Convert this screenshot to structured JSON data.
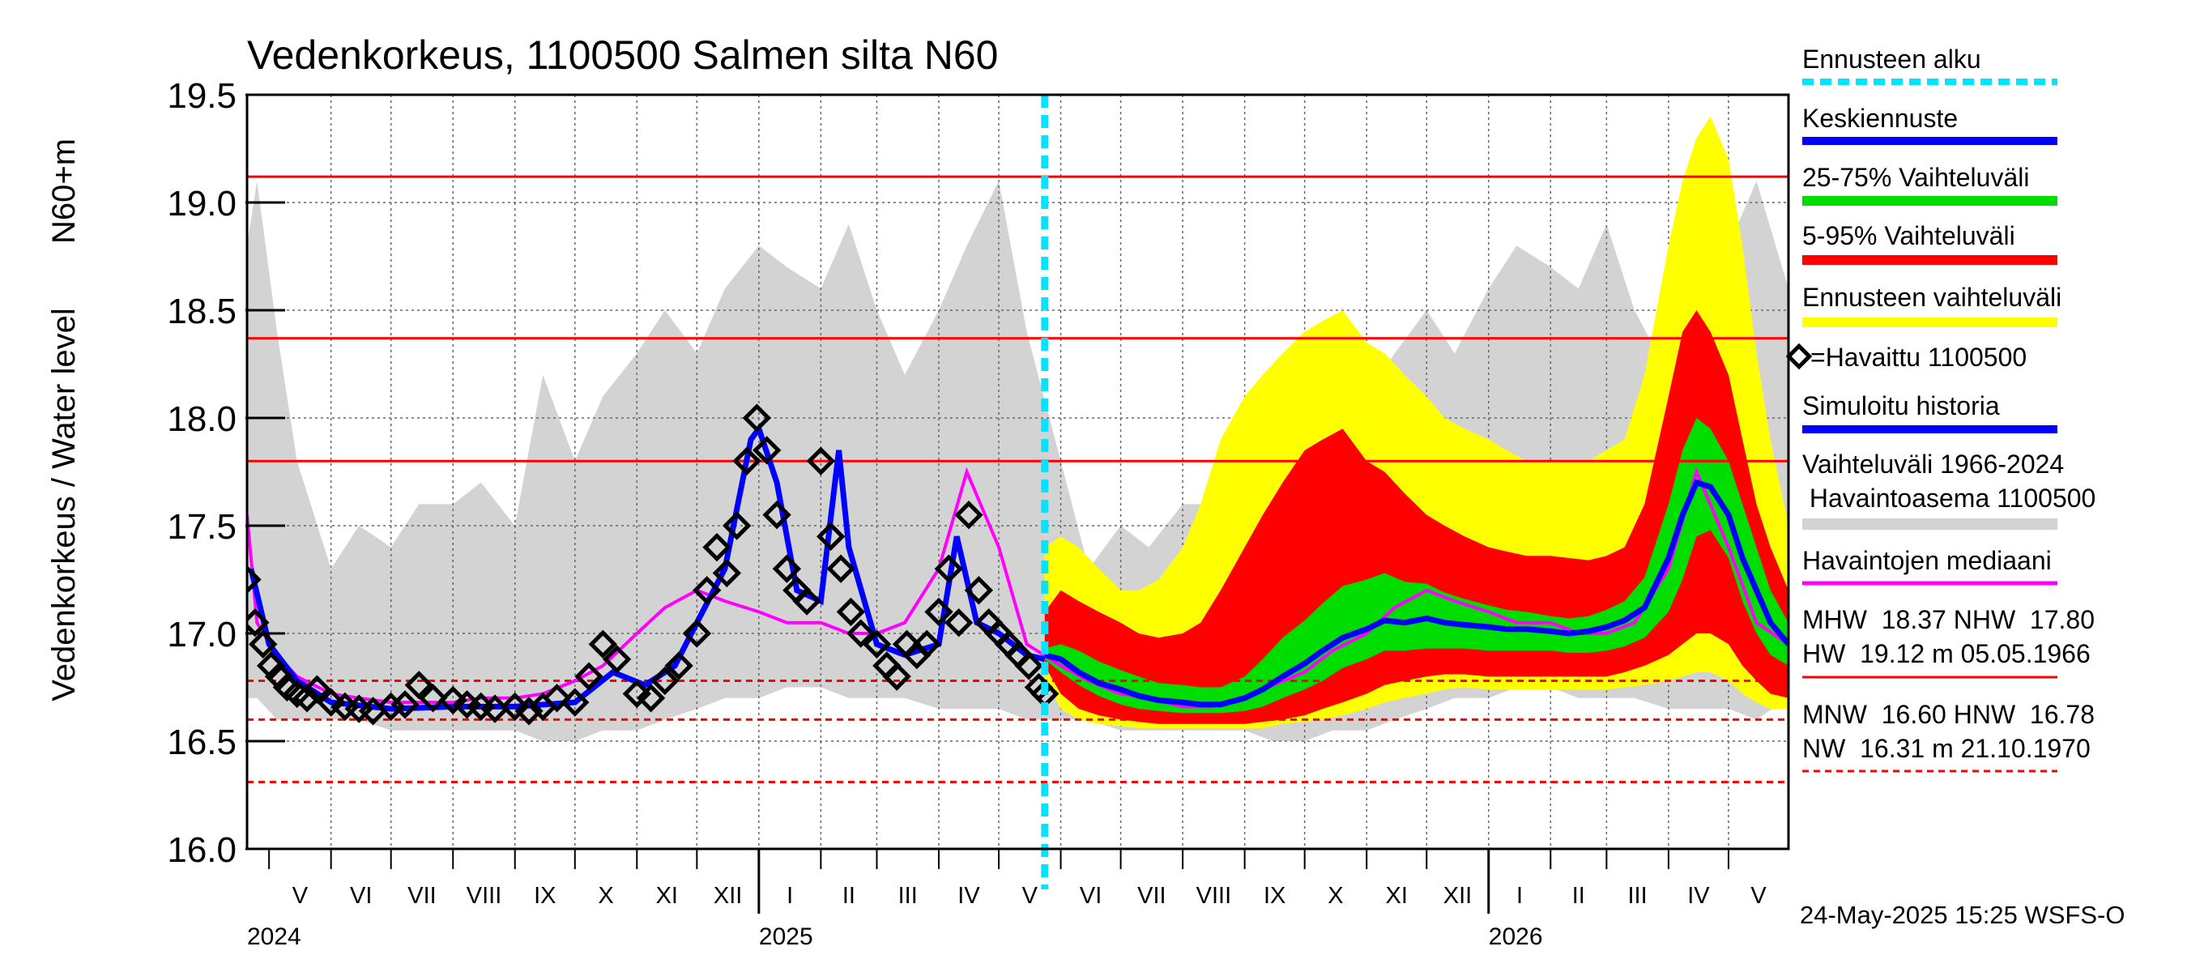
{
  "title": "Vedenkorkeus, 1100500 Salmen silta N60",
  "ylabel_left": "Vedenkorkeus / Water level",
  "ylabel_right": "N60+m",
  "footer_timestamp": "24-May-2025 15:25 WSFS-O",
  "colors": {
    "forecast_start": "#00e5ff",
    "mean_forecast": "#0000ff",
    "band_25_75": "#00dd00",
    "band_5_95": "#ff0000",
    "forecast_range": "#ffff00",
    "observed": "#000000",
    "simulated": "#0000ff",
    "history_range": "#d3d3d3",
    "median": "#ff00ff",
    "ref_lines": "#ff0000"
  },
  "legend": {
    "forecast_start": "Ennusteen alku",
    "mean_forecast": "Keskiennuste",
    "band_25_75": "25-75% Vaihteluväli",
    "band_5_95": "5-95% Vaihteluväli",
    "forecast_range": "Ennusteen vaihteluväli",
    "observed": "=Havaittu 1100500",
    "simulated": "Simuloitu historia",
    "history_range_1": "Vaihteluväli 1966-2024",
    "history_range_2": " Havaintoasema 1100500",
    "median": "Havaintojen mediaani",
    "stats_1": "MHW  18.37 NHW  17.80",
    "stats_2": "HW  19.12 m 05.05.1966",
    "stats_3": "MNW  16.60 HNW  16.78",
    "stats_4": "NW  16.31 m 21.10.1970"
  },
  "chart_data": {
    "type": "line",
    "ylim": [
      16.0,
      19.5
    ],
    "yticks": [
      "16.0",
      "16.5",
      "17.0",
      "17.5",
      "18.0",
      "18.5",
      "19.0",
      "19.5"
    ],
    "xlim": [
      "2024-04-20",
      "2026-05-31"
    ],
    "forecast_start": "2025-05-24",
    "grid": true,
    "legend_position": "right",
    "months": [
      {
        "label": "V",
        "start": "2024-05-01"
      },
      {
        "label": "VI",
        "start": "2024-06-01"
      },
      {
        "label": "VII",
        "start": "2024-07-01"
      },
      {
        "label": "VIII",
        "start": "2024-08-01"
      },
      {
        "label": "IX",
        "start": "2024-09-01"
      },
      {
        "label": "X",
        "start": "2024-10-01"
      },
      {
        "label": "XI",
        "start": "2024-11-01"
      },
      {
        "label": "XII",
        "start": "2024-12-01"
      },
      {
        "label": "I",
        "start": "2025-01-01"
      },
      {
        "label": "II",
        "start": "2025-02-01"
      },
      {
        "label": "III",
        "start": "2025-03-01"
      },
      {
        "label": "IV",
        "start": "2025-04-01"
      },
      {
        "label": "V",
        "start": "2025-05-01"
      },
      {
        "label": "VI",
        "start": "2025-06-01"
      },
      {
        "label": "VII",
        "start": "2025-07-01"
      },
      {
        "label": "VIII",
        "start": "2025-08-01"
      },
      {
        "label": "IX",
        "start": "2025-09-01"
      },
      {
        "label": "X",
        "start": "2025-10-01"
      },
      {
        "label": "XI",
        "start": "2025-11-01"
      },
      {
        "label": "XII",
        "start": "2025-12-01"
      },
      {
        "label": "I",
        "start": "2026-01-01"
      },
      {
        "label": "II",
        "start": "2026-02-01"
      },
      {
        "label": "III",
        "start": "2026-03-01"
      },
      {
        "label": "IV",
        "start": "2026-04-01"
      },
      {
        "label": "V",
        "start": "2026-05-01"
      }
    ],
    "month_end": "2026-06-01",
    "years": [
      {
        "label": "2024",
        "date": "2024-04-20"
      },
      {
        "label": "2025",
        "date": "2025-01-01"
      },
      {
        "label": "2026",
        "date": "2026-01-01"
      }
    ],
    "reference_lines": [
      {
        "name": "HW",
        "value": 19.12,
        "style": "solid"
      },
      {
        "name": "MHW",
        "value": 18.37,
        "style": "solid"
      },
      {
        "name": "NHW",
        "value": 17.8,
        "style": "solid"
      },
      {
        "name": "HNW",
        "value": 16.78,
        "style": "dashed"
      },
      {
        "name": "MNW",
        "value": 16.6,
        "style": "dashed"
      },
      {
        "name": "NW",
        "value": 16.31,
        "style": "dashed"
      }
    ],
    "history_range": {
      "x": [
        "2024-04-20",
        "2024-04-25",
        "2024-05-05",
        "2024-05-15",
        "2024-06-01",
        "2024-06-15",
        "2024-07-01",
        "2024-07-15",
        "2024-08-01",
        "2024-08-15",
        "2024-09-01",
        "2024-09-15",
        "2024-10-01",
        "2024-10-15",
        "2024-11-01",
        "2024-11-15",
        "2024-12-01",
        "2024-12-15",
        "2025-01-01",
        "2025-01-15",
        "2025-02-01",
        "2025-02-15",
        "2025-03-01",
        "2025-03-15",
        "2025-04-01",
        "2025-04-15",
        "2025-05-01",
        "2025-05-15",
        "2025-06-01",
        "2025-06-15",
        "2025-07-01",
        "2025-07-15",
        "2025-08-01",
        "2025-08-15",
        "2025-09-01",
        "2025-09-15",
        "2025-10-01",
        "2025-10-15",
        "2025-11-01",
        "2025-11-15",
        "2025-12-01",
        "2025-12-15",
        "2026-01-01",
        "2026-01-15",
        "2026-02-01",
        "2026-02-15",
        "2026-03-01",
        "2026-03-15",
        "2026-04-01",
        "2026-04-15",
        "2026-05-01",
        "2026-05-15",
        "2026-05-31"
      ],
      "low": [
        16.7,
        16.7,
        16.6,
        16.6,
        16.6,
        16.6,
        16.55,
        16.55,
        16.55,
        16.55,
        16.55,
        16.5,
        16.5,
        16.55,
        16.55,
        16.6,
        16.65,
        16.7,
        16.7,
        16.75,
        16.75,
        16.7,
        16.7,
        16.7,
        16.65,
        16.65,
        16.65,
        16.6,
        16.6,
        16.6,
        16.55,
        16.55,
        16.55,
        16.55,
        16.55,
        16.5,
        16.5,
        16.55,
        16.55,
        16.6,
        16.65,
        16.7,
        16.7,
        16.75,
        16.75,
        16.7,
        16.7,
        16.7,
        16.65,
        16.65,
        16.65,
        16.6,
        16.7
      ],
      "high": [
        18.8,
        19.1,
        18.4,
        17.8,
        17.3,
        17.5,
        17.4,
        17.6,
        17.6,
        17.7,
        17.5,
        18.2,
        17.8,
        18.1,
        18.3,
        18.5,
        18.3,
        18.6,
        18.8,
        18.7,
        18.6,
        18.9,
        18.5,
        18.2,
        18.5,
        18.8,
        19.1,
        18.4,
        17.8,
        17.3,
        17.5,
        17.4,
        17.6,
        17.6,
        17.7,
        17.5,
        18.2,
        17.8,
        18.1,
        18.3,
        18.5,
        18.3,
        18.6,
        18.8,
        18.7,
        18.6,
        18.9,
        18.5,
        18.2,
        18.5,
        18.8,
        19.1,
        18.6
      ]
    },
    "median": {
      "x": [
        "2024-04-20",
        "2024-04-25",
        "2024-05-05",
        "2024-05-15",
        "2024-06-01",
        "2024-06-15",
        "2024-07-01",
        "2024-07-15",
        "2024-08-01",
        "2024-08-15",
        "2024-09-01",
        "2024-09-15",
        "2024-10-01",
        "2024-10-15",
        "2024-11-01",
        "2024-11-15",
        "2024-12-01",
        "2024-12-15",
        "2025-01-01",
        "2025-01-15",
        "2025-02-01",
        "2025-02-15",
        "2025-03-01",
        "2025-03-15",
        "2025-04-01",
        "2025-04-15",
        "2025-05-01",
        "2025-05-15",
        "2025-06-01",
        "2025-06-15",
        "2025-07-01",
        "2025-07-15",
        "2025-08-01",
        "2025-08-15",
        "2025-09-01",
        "2025-09-15",
        "2025-10-01",
        "2025-10-15",
        "2025-11-01",
        "2025-11-15",
        "2025-12-01",
        "2025-12-15",
        "2026-01-01",
        "2026-01-15",
        "2026-02-01",
        "2026-02-15",
        "2026-03-01",
        "2026-03-15",
        "2026-04-01",
        "2026-04-15",
        "2026-05-01",
        "2026-05-15",
        "2026-05-31"
      ],
      "values": [
        17.55,
        17.05,
        16.9,
        16.8,
        16.72,
        16.7,
        16.68,
        16.68,
        16.68,
        16.7,
        16.7,
        16.72,
        16.78,
        16.85,
        17.0,
        17.12,
        17.2,
        17.15,
        17.1,
        17.05,
        17.05,
        17.0,
        17.0,
        17.05,
        17.3,
        17.75,
        17.4,
        16.95,
        16.85,
        16.78,
        16.72,
        16.7,
        16.66,
        16.66,
        16.7,
        16.76,
        16.82,
        16.92,
        17.0,
        17.12,
        17.2,
        17.15,
        17.1,
        17.05,
        17.05,
        17.0,
        17.0,
        17.05,
        17.3,
        17.75,
        17.4,
        17.05,
        16.95
      ]
    },
    "simulated": {
      "x": [
        "2024-04-22",
        "2024-05-01",
        "2024-05-15",
        "2024-06-01",
        "2024-07-01",
        "2024-08-01",
        "2024-09-01",
        "2024-10-01",
        "2024-10-20",
        "2024-11-05",
        "2024-11-20",
        "2024-12-01",
        "2024-12-15",
        "2024-12-28",
        "2025-01-01",
        "2025-01-10",
        "2025-01-20",
        "2025-02-01",
        "2025-02-10",
        "2025-02-15",
        "2025-03-01",
        "2025-03-15",
        "2025-04-01",
        "2025-04-10",
        "2025-04-20",
        "2025-05-01",
        "2025-05-15",
        "2025-05-24"
      ],
      "values": [
        17.3,
        16.95,
        16.78,
        16.68,
        16.65,
        16.66,
        16.66,
        16.68,
        16.82,
        16.76,
        16.85,
        17.05,
        17.3,
        17.9,
        17.95,
        17.7,
        17.2,
        17.15,
        17.85,
        17.4,
        16.95,
        16.9,
        16.95,
        17.45,
        17.05,
        17.0,
        16.9,
        16.88
      ]
    },
    "observed": {
      "x": [
        "2024-04-20",
        "2024-04-24",
        "2024-04-28",
        "2024-05-02",
        "2024-05-06",
        "2024-05-10",
        "2024-05-15",
        "2024-05-20",
        "2024-05-25",
        "2024-06-01",
        "2024-06-08",
        "2024-06-15",
        "2024-06-22",
        "2024-07-01",
        "2024-07-08",
        "2024-07-15",
        "2024-07-22",
        "2024-08-01",
        "2024-08-08",
        "2024-08-15",
        "2024-08-22",
        "2024-09-01",
        "2024-09-08",
        "2024-09-15",
        "2024-09-22",
        "2024-10-01",
        "2024-10-08",
        "2024-10-15",
        "2024-10-22",
        "2024-11-01",
        "2024-11-08",
        "2024-11-15",
        "2024-11-22",
        "2024-12-01",
        "2024-12-06",
        "2024-12-11",
        "2024-12-16",
        "2024-12-21",
        "2024-12-26",
        "2024-12-31",
        "2025-01-05",
        "2025-01-10",
        "2025-01-15",
        "2025-01-20",
        "2025-01-25",
        "2025-02-01",
        "2025-02-06",
        "2025-02-11",
        "2025-02-16",
        "2025-02-21",
        "2025-03-01",
        "2025-03-06",
        "2025-03-11",
        "2025-03-16",
        "2025-03-21",
        "2025-03-26",
        "2025-04-01",
        "2025-04-06",
        "2025-04-11",
        "2025-04-16",
        "2025-04-21",
        "2025-04-26",
        "2025-05-01",
        "2025-05-06",
        "2025-05-11",
        "2025-05-16",
        "2025-05-21",
        "2025-05-24"
      ],
      "values": [
        17.25,
        17.05,
        16.95,
        16.85,
        16.8,
        16.75,
        16.72,
        16.7,
        16.74,
        16.68,
        16.66,
        16.65,
        16.64,
        16.66,
        16.67,
        16.76,
        16.7,
        16.69,
        16.67,
        16.66,
        16.65,
        16.66,
        16.64,
        16.66,
        16.7,
        16.68,
        16.8,
        16.95,
        16.88,
        16.72,
        16.7,
        16.78,
        16.85,
        17.0,
        17.2,
        17.4,
        17.28,
        17.5,
        17.8,
        18.0,
        17.85,
        17.55,
        17.3,
        17.2,
        17.15,
        17.8,
        17.45,
        17.3,
        17.1,
        17.0,
        16.95,
        16.85,
        16.8,
        16.95,
        16.9,
        16.95,
        17.1,
        17.3,
        17.05,
        17.55,
        17.2,
        17.05,
        17.0,
        16.95,
        16.9,
        16.85,
        16.75,
        16.72
      ]
    },
    "forecast": {
      "x": [
        "2025-05-24",
        "2025-06-01",
        "2025-06-10",
        "2025-06-20",
        "2025-07-01",
        "2025-07-10",
        "2025-07-20",
        "2025-08-01",
        "2025-08-10",
        "2025-08-20",
        "2025-09-01",
        "2025-09-10",
        "2025-09-20",
        "2025-10-01",
        "2025-10-10",
        "2025-10-20",
        "2025-11-01",
        "2025-11-10",
        "2025-11-20",
        "2025-12-01",
        "2025-12-10",
        "2025-12-20",
        "2026-01-01",
        "2026-01-10",
        "2026-01-20",
        "2026-02-01",
        "2026-02-10",
        "2026-02-20",
        "2026-03-01",
        "2026-03-10",
        "2026-03-20",
        "2026-04-01",
        "2026-04-08",
        "2026-04-15",
        "2026-04-22",
        "2026-05-01",
        "2026-05-08",
        "2026-05-15",
        "2026-05-22",
        "2026-05-31"
      ],
      "mean": [
        16.9,
        16.88,
        16.82,
        16.77,
        16.74,
        16.71,
        16.69,
        16.68,
        16.67,
        16.67,
        16.7,
        16.74,
        16.8,
        16.86,
        16.92,
        16.98,
        17.02,
        17.06,
        17.05,
        17.07,
        17.05,
        17.04,
        17.03,
        17.02,
        17.02,
        17.01,
        17.0,
        17.01,
        17.03,
        17.06,
        17.12,
        17.35,
        17.55,
        17.7,
        17.68,
        17.55,
        17.35,
        17.2,
        17.05,
        16.95
      ],
      "p25": [
        16.88,
        16.82,
        16.76,
        16.71,
        16.67,
        16.65,
        16.64,
        16.63,
        16.63,
        16.63,
        16.64,
        16.66,
        16.7,
        16.74,
        16.78,
        16.84,
        16.88,
        16.92,
        16.92,
        16.93,
        16.93,
        16.93,
        16.92,
        16.92,
        16.92,
        16.92,
        16.91,
        16.91,
        16.92,
        16.94,
        16.98,
        17.1,
        17.25,
        17.45,
        17.48,
        17.35,
        17.15,
        17.0,
        16.9,
        16.85
      ],
      "p75": [
        16.93,
        16.95,
        16.92,
        16.87,
        16.83,
        16.8,
        16.77,
        16.76,
        16.75,
        16.75,
        16.8,
        16.88,
        16.98,
        17.06,
        17.14,
        17.22,
        17.25,
        17.28,
        17.24,
        17.23,
        17.19,
        17.16,
        17.13,
        17.11,
        17.1,
        17.08,
        17.07,
        17.08,
        17.11,
        17.15,
        17.26,
        17.6,
        17.85,
        18.0,
        17.95,
        17.8,
        17.6,
        17.4,
        17.2,
        17.05
      ],
      "p5": [
        16.85,
        16.72,
        16.65,
        16.62,
        16.6,
        16.59,
        16.58,
        16.58,
        16.58,
        16.58,
        16.58,
        16.59,
        16.6,
        16.62,
        16.65,
        16.68,
        16.72,
        16.76,
        16.78,
        16.8,
        16.81,
        16.81,
        16.8,
        16.8,
        16.8,
        16.8,
        16.8,
        16.8,
        16.8,
        16.82,
        16.85,
        16.9,
        16.95,
        17.0,
        17.0,
        16.95,
        16.85,
        16.78,
        16.72,
        16.7
      ],
      "p95": [
        17.1,
        17.2,
        17.15,
        17.1,
        17.05,
        17.0,
        16.98,
        17.0,
        17.05,
        17.2,
        17.4,
        17.55,
        17.7,
        17.85,
        17.9,
        17.95,
        17.8,
        17.75,
        17.65,
        17.55,
        17.5,
        17.45,
        17.4,
        17.38,
        17.36,
        17.36,
        17.35,
        17.34,
        17.36,
        17.4,
        17.6,
        18.1,
        18.4,
        18.5,
        18.4,
        18.2,
        17.9,
        17.6,
        17.4,
        17.2
      ],
      "min": [
        16.8,
        16.65,
        16.6,
        16.58,
        16.57,
        16.56,
        16.56,
        16.56,
        16.56,
        16.56,
        16.56,
        16.56,
        16.58,
        16.59,
        16.6,
        16.62,
        16.65,
        16.68,
        16.7,
        16.72,
        16.74,
        16.75,
        16.74,
        16.74,
        16.74,
        16.74,
        16.74,
        16.74,
        16.74,
        16.75,
        16.76,
        16.78,
        16.8,
        16.82,
        16.82,
        16.78,
        16.72,
        16.68,
        16.65,
        16.65
      ],
      "max": [
        17.4,
        17.45,
        17.4,
        17.3,
        17.2,
        17.2,
        17.25,
        17.4,
        17.6,
        17.9,
        18.1,
        18.2,
        18.3,
        18.4,
        18.45,
        18.5,
        18.35,
        18.3,
        18.2,
        18.1,
        18.0,
        17.95,
        17.9,
        17.85,
        17.8,
        17.8,
        17.8,
        17.8,
        17.85,
        17.9,
        18.2,
        18.8,
        19.1,
        19.3,
        19.4,
        19.2,
        18.8,
        18.3,
        17.9,
        17.5
      ]
    }
  }
}
